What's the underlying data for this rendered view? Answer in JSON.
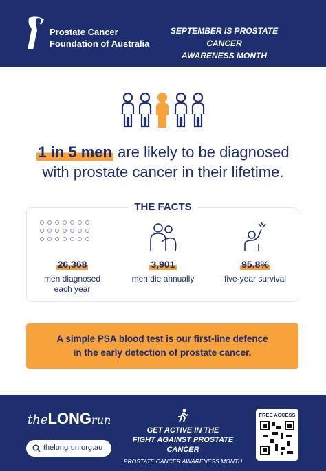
{
  "header": {
    "org_name_line1": "Prostate Cancer",
    "org_name_line2": "Foundation of Australia",
    "campaign_line1": "SEPTEMBER IS PROSTATE CANCER",
    "campaign_line2": "AWARENESS MONTH"
  },
  "headline": {
    "highlight": "1 in 5 men",
    "rest_line1": "are likely to be diagnosed",
    "rest_line2": "with prostate cancer in their lifetime."
  },
  "facts": {
    "title": "THE FACTS",
    "items": [
      {
        "value": "26,368",
        "label_line1": "men diagnosed",
        "label_line2": "each year"
      },
      {
        "value": "3,901",
        "label_line1": "men die annually"
      },
      {
        "value": "95.8%",
        "label_line1": "five-year survival"
      }
    ]
  },
  "banner": {
    "line1": "A simple PSA blood test is our first-line defence",
    "line2": "in the early detection of prostate cancer."
  },
  "footer": {
    "brand_the": "the",
    "brand_long": "LONG",
    "brand_run": "run",
    "website": "thelongrun.org.au",
    "cta_line1": "GET ACTIVE IN THE",
    "cta_line2": "FIGHT AGAINST PROSTATE CANCER",
    "cta_sub": "PROSTATE CANCER AWARENESS MONTH",
    "qr_label": "FREE ACCESS"
  }
}
